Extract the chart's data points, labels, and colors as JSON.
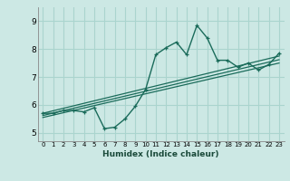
{
  "xlabel": "Humidex (Indice chaleur)",
  "ylabel": "",
  "bg_color": "#cce8e4",
  "grid_color": "#aad4ce",
  "line_color": "#1a6b5a",
  "xlim": [
    -0.5,
    23.5
  ],
  "ylim": [
    4.7,
    9.5
  ],
  "xticks": [
    0,
    1,
    2,
    3,
    4,
    5,
    6,
    7,
    8,
    9,
    10,
    11,
    12,
    13,
    14,
    15,
    16,
    17,
    18,
    19,
    20,
    21,
    22,
    23
  ],
  "yticks": [
    5,
    6,
    7,
    8,
    9
  ],
  "main_x": [
    0,
    1,
    2,
    3,
    4,
    5,
    6,
    7,
    8,
    9,
    10,
    11,
    12,
    13,
    14,
    15,
    16,
    17,
    18,
    19,
    20,
    21,
    22,
    23
  ],
  "main_y": [
    5.7,
    5.7,
    5.8,
    5.8,
    5.75,
    5.9,
    5.15,
    5.2,
    5.5,
    5.95,
    6.55,
    7.8,
    8.05,
    8.25,
    7.8,
    8.85,
    8.4,
    7.6,
    7.6,
    7.35,
    7.5,
    7.25,
    7.45,
    7.85
  ],
  "trend1_x": [
    0,
    23
  ],
  "trend1_y": [
    5.7,
    7.75
  ],
  "trend2_x": [
    0,
    23
  ],
  "trend2_y": [
    5.62,
    7.62
  ],
  "trend3_x": [
    0,
    23
  ],
  "trend3_y": [
    5.55,
    7.5
  ]
}
